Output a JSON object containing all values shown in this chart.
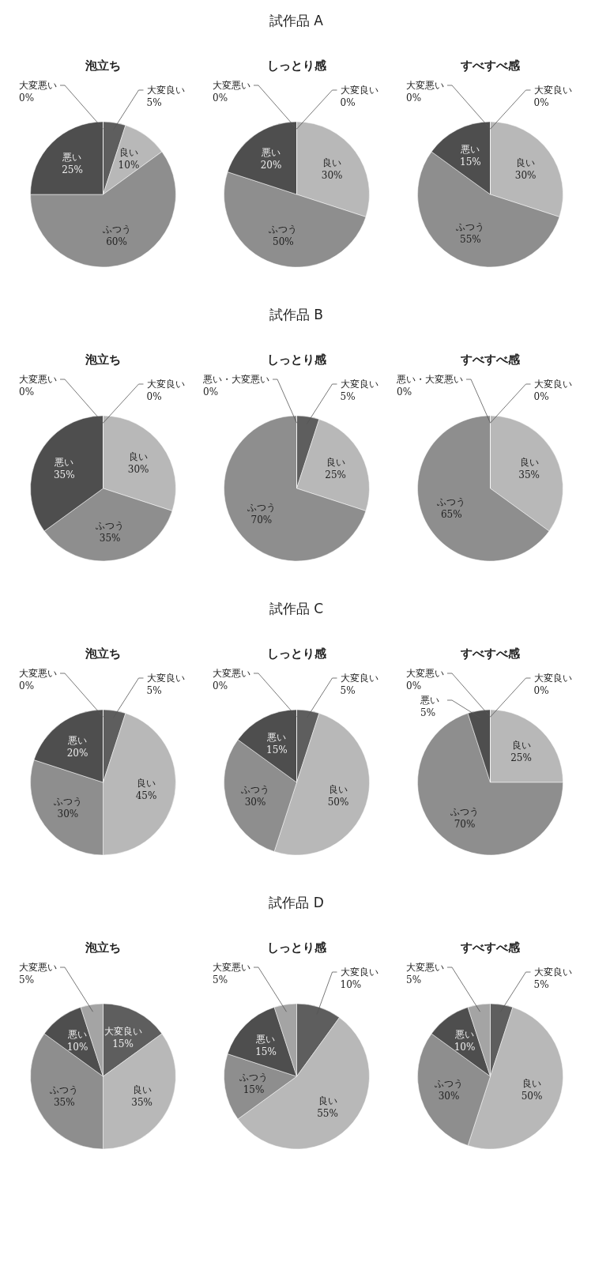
{
  "chart_data": [
    {
      "type": "other",
      "title": "試作品 A"
    },
    {
      "type": "pie",
      "title": "泡立ち",
      "categories": [
        "大変良い",
        "良い",
        "ふつう",
        "悪い",
        "大変悪い"
      ],
      "values": [
        5,
        10,
        60,
        25,
        0
      ],
      "value_labels": [
        "5%",
        "10%",
        "60%",
        "25%",
        "0%"
      ],
      "colors": [
        "#5e5e5e",
        "#b8b8b8",
        "#8e8e8e",
        "#4e4e4e",
        "#a4a4a4"
      ]
    },
    {
      "type": "pie",
      "title": "しっとり感",
      "categories": [
        "大変良い",
        "良い",
        "ふつう",
        "悪い",
        "大変悪い"
      ],
      "values": [
        0,
        30,
        50,
        20,
        0
      ],
      "value_labels": [
        "0%",
        "30%",
        "50%",
        "20%",
        "0%"
      ],
      "colors": [
        "#5e5e5e",
        "#b8b8b8",
        "#8e8e8e",
        "#4e4e4e",
        "#a4a4a4"
      ]
    },
    {
      "type": "pie",
      "title": "すべすべ感",
      "categories": [
        "大変良い",
        "良い",
        "ふつう",
        "悪い",
        "大変悪い"
      ],
      "values": [
        0,
        30,
        55,
        15,
        0
      ],
      "value_labels": [
        "0%",
        "30%",
        "55%",
        "15%",
        "0%"
      ],
      "colors": [
        "#5e5e5e",
        "#b8b8b8",
        "#8e8e8e",
        "#4e4e4e",
        "#a4a4a4"
      ]
    },
    {
      "type": "other",
      "title": "試作品 B"
    },
    {
      "type": "pie",
      "title": "泡立ち",
      "categories": [
        "大変良い",
        "良い",
        "ふつう",
        "悪い",
        "大変悪い"
      ],
      "values": [
        0,
        30,
        35,
        35,
        0
      ],
      "value_labels": [
        "0%",
        "30%",
        "35%",
        "35%",
        "0%"
      ],
      "colors": [
        "#5e5e5e",
        "#b8b8b8",
        "#8e8e8e",
        "#4e4e4e",
        "#a4a4a4"
      ]
    },
    {
      "type": "pie",
      "title": "しっとり感",
      "categories": [
        "大変良い",
        "良い",
        "ふつう",
        "悪い・大変悪い"
      ],
      "values": [
        5,
        25,
        70,
        0
      ],
      "value_labels": [
        "5%",
        "25%",
        "70%",
        "0%"
      ],
      "colors": [
        "#5e5e5e",
        "#b8b8b8",
        "#8e8e8e",
        "#4e4e4e"
      ]
    },
    {
      "type": "pie",
      "title": "すべすべ感",
      "categories": [
        "大変良い",
        "良い",
        "ふつう",
        "悪い・大変悪い"
      ],
      "values": [
        0,
        35,
        65,
        0
      ],
      "value_labels": [
        "0%",
        "35%",
        "65%",
        "0%"
      ],
      "colors": [
        "#5e5e5e",
        "#b8b8b8",
        "#8e8e8e",
        "#4e4e4e"
      ]
    },
    {
      "type": "other",
      "title": "試作品 C"
    },
    {
      "type": "pie",
      "title": "泡立ち",
      "categories": [
        "大変良い",
        "良い",
        "ふつう",
        "悪い",
        "大変悪い"
      ],
      "values": [
        5,
        45,
        30,
        20,
        0
      ],
      "value_labels": [
        "5%",
        "45%",
        "30%",
        "20%",
        "0%"
      ],
      "colors": [
        "#5e5e5e",
        "#b8b8b8",
        "#8e8e8e",
        "#4e4e4e",
        "#a4a4a4"
      ]
    },
    {
      "type": "pie",
      "title": "しっとり感",
      "categories": [
        "大変良い",
        "良い",
        "ふつう",
        "悪い",
        "大変悪い"
      ],
      "values": [
        5,
        50,
        30,
        15,
        0
      ],
      "value_labels": [
        "5%",
        "50%",
        "30%",
        "15%",
        "0%"
      ],
      "colors": [
        "#5e5e5e",
        "#b8b8b8",
        "#8e8e8e",
        "#4e4e4e",
        "#a4a4a4"
      ]
    },
    {
      "type": "pie",
      "title": "すべすべ感",
      "categories": [
        "大変良い",
        "良い",
        "ふつう",
        "悪い",
        "大変悪い"
      ],
      "values": [
        0,
        25,
        70,
        5,
        0
      ],
      "value_labels": [
        "0%",
        "25%",
        "70%",
        "5%",
        "0%"
      ],
      "colors": [
        "#5e5e5e",
        "#b8b8b8",
        "#8e8e8e",
        "#4e4e4e",
        "#a4a4a4"
      ]
    },
    {
      "type": "other",
      "title": "試作品 D"
    },
    {
      "type": "pie",
      "title": "泡立ち",
      "categories": [
        "大変良い",
        "良い",
        "ふつう",
        "悪い",
        "大変悪い"
      ],
      "values": [
        15,
        35,
        35,
        10,
        5
      ],
      "value_labels": [
        "15%",
        "35%",
        "35%",
        "10%",
        "5%"
      ],
      "colors": [
        "#5e5e5e",
        "#b8b8b8",
        "#8e8e8e",
        "#4e4e4e",
        "#a4a4a4"
      ]
    },
    {
      "type": "pie",
      "title": "しっとり感",
      "categories": [
        "大変良い",
        "良い",
        "ふつう",
        "悪い",
        "大変悪い"
      ],
      "values": [
        10,
        55,
        15,
        15,
        5
      ],
      "value_labels": [
        "10%",
        "55%",
        "15%",
        "15%",
        "5%"
      ],
      "colors": [
        "#5e5e5e",
        "#b8b8b8",
        "#8e8e8e",
        "#4e4e4e",
        "#a4a4a4"
      ]
    },
    {
      "type": "pie",
      "title": "すべすべ感",
      "categories": [
        "大変良い",
        "良い",
        "ふつう",
        "悪い",
        "大変悪い"
      ],
      "values": [
        5,
        50,
        30,
        10,
        5
      ],
      "value_labels": [
        "5%",
        "50%",
        "30%",
        "10%",
        "5%"
      ],
      "colors": [
        "#5e5e5e",
        "#b8b8b8",
        "#8e8e8e",
        "#4e4e4e",
        "#a4a4a4"
      ]
    }
  ]
}
